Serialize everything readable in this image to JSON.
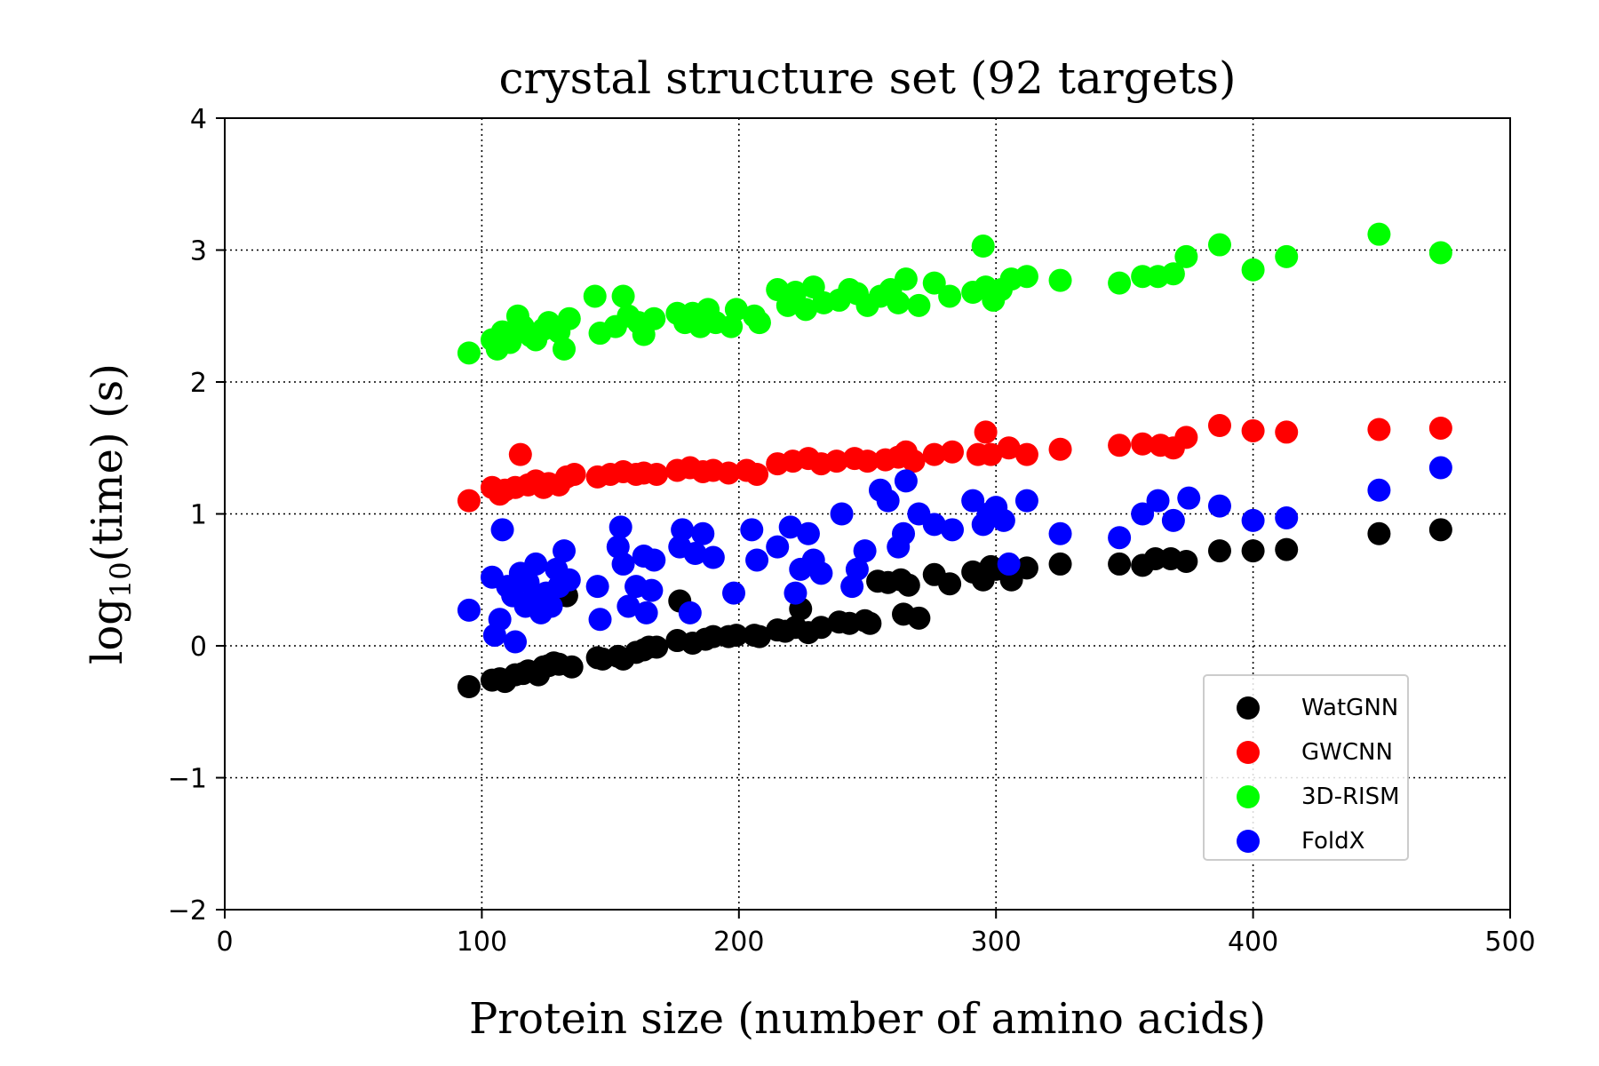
{
  "chart_data": {
    "type": "scatter",
    "title": "crystal structure set (92 targets)",
    "xlabel": "Protein size (number of amino acids)",
    "ylabel": {
      "prefix": "log",
      "subscript": "10",
      "suffix": "(time) (s)"
    },
    "xlim": [
      0,
      500
    ],
    "ylim": [
      -2,
      4
    ],
    "xticks": [
      0,
      100,
      200,
      300,
      400,
      500
    ],
    "yticks": [
      -2,
      -1,
      0,
      1,
      2,
      3,
      4
    ],
    "ytick_labels": [
      "−2",
      "−1",
      "0",
      "1",
      "2",
      "3",
      "4"
    ],
    "grid": "dotted",
    "legend_position": "lower-right",
    "series": [
      {
        "name": "WatGNN",
        "color": "#000000",
        "points": [
          [
            95,
            -0.31
          ],
          [
            104,
            -0.26
          ],
          [
            107,
            -0.25
          ],
          [
            109,
            -0.27
          ],
          [
            113,
            -0.22
          ],
          [
            116,
            -0.21
          ],
          [
            118,
            -0.19
          ],
          [
            121,
            -0.2
          ],
          [
            122,
            -0.22
          ],
          [
            124,
            -0.16
          ],
          [
            126,
            -0.15
          ],
          [
            128,
            -0.13
          ],
          [
            130,
            -0.14
          ],
          [
            133,
            0.38
          ],
          [
            135,
            -0.16
          ],
          [
            145,
            -0.09
          ],
          [
            147,
            -0.1
          ],
          [
            153,
            -0.08
          ],
          [
            155,
            -0.1
          ],
          [
            160,
            -0.05
          ],
          [
            163,
            -0.03
          ],
          [
            165,
            -0.01
          ],
          [
            168,
            -0.01
          ],
          [
            176,
            0.04
          ],
          [
            177,
            0.34
          ],
          [
            182,
            0.02
          ],
          [
            187,
            0.05
          ],
          [
            190,
            0.07
          ],
          [
            196,
            0.07
          ],
          [
            199,
            0.08
          ],
          [
            206,
            0.08
          ],
          [
            208,
            0.07
          ],
          [
            215,
            0.12
          ],
          [
            218,
            0.11
          ],
          [
            222,
            0.14
          ],
          [
            224,
            0.28
          ],
          [
            227,
            0.1
          ],
          [
            232,
            0.14
          ],
          [
            239,
            0.18
          ],
          [
            243,
            0.17
          ],
          [
            249,
            0.19
          ],
          [
            251,
            0.17
          ],
          [
            254,
            0.49
          ],
          [
            258,
            0.48
          ],
          [
            263,
            0.5
          ],
          [
            264,
            0.24
          ],
          [
            266,
            0.46
          ],
          [
            270,
            0.21
          ],
          [
            276,
            0.54
          ],
          [
            282,
            0.47
          ],
          [
            291,
            0.56
          ],
          [
            295,
            0.5
          ],
          [
            298,
            0.6
          ],
          [
            300,
            0.58
          ],
          [
            306,
            0.5
          ],
          [
            312,
            0.59
          ],
          [
            325,
            0.62
          ],
          [
            348,
            0.62
          ],
          [
            357,
            0.61
          ],
          [
            362,
            0.66
          ],
          [
            368,
            0.66
          ],
          [
            374,
            0.64
          ],
          [
            387,
            0.72
          ],
          [
            400,
            0.72
          ],
          [
            413,
            0.73
          ],
          [
            449,
            0.85
          ],
          [
            473,
            0.88
          ]
        ]
      },
      {
        "name": "GWCNN",
        "color": "#ff0000",
        "points": [
          [
            95,
            1.1
          ],
          [
            104,
            1.2
          ],
          [
            107,
            1.15
          ],
          [
            109,
            1.18
          ],
          [
            113,
            1.2
          ],
          [
            115,
            1.45
          ],
          [
            118,
            1.22
          ],
          [
            121,
            1.25
          ],
          [
            124,
            1.2
          ],
          [
            126,
            1.23
          ],
          [
            130,
            1.22
          ],
          [
            133,
            1.28
          ],
          [
            136,
            1.3
          ],
          [
            145,
            1.28
          ],
          [
            150,
            1.3
          ],
          [
            155,
            1.32
          ],
          [
            160,
            1.3
          ],
          [
            163,
            1.31
          ],
          [
            168,
            1.3
          ],
          [
            176,
            1.33
          ],
          [
            181,
            1.35
          ],
          [
            186,
            1.32
          ],
          [
            190,
            1.33
          ],
          [
            196,
            1.31
          ],
          [
            203,
            1.33
          ],
          [
            207,
            1.3
          ],
          [
            215,
            1.38
          ],
          [
            221,
            1.4
          ],
          [
            227,
            1.42
          ],
          [
            232,
            1.38
          ],
          [
            238,
            1.4
          ],
          [
            245,
            1.42
          ],
          [
            250,
            1.4
          ],
          [
            257,
            1.41
          ],
          [
            262,
            1.43
          ],
          [
            265,
            1.47
          ],
          [
            268,
            1.4
          ],
          [
            276,
            1.45
          ],
          [
            283,
            1.47
          ],
          [
            293,
            1.45
          ],
          [
            296,
            1.62
          ],
          [
            298,
            1.45
          ],
          [
            305,
            1.5
          ],
          [
            312,
            1.45
          ],
          [
            325,
            1.49
          ],
          [
            348,
            1.52
          ],
          [
            357,
            1.53
          ],
          [
            364,
            1.52
          ],
          [
            369,
            1.5
          ],
          [
            374,
            1.58
          ],
          [
            387,
            1.67
          ],
          [
            400,
            1.63
          ],
          [
            413,
            1.62
          ],
          [
            449,
            1.64
          ],
          [
            473,
            1.65
          ]
        ]
      },
      {
        "name": "3D-RISM",
        "color": "#00ff00",
        "points": [
          [
            95,
            2.22
          ],
          [
            104,
            2.32
          ],
          [
            106,
            2.25
          ],
          [
            108,
            2.38
          ],
          [
            111,
            2.3
          ],
          [
            114,
            2.5
          ],
          [
            116,
            2.42
          ],
          [
            119,
            2.35
          ],
          [
            121,
            2.32
          ],
          [
            124,
            2.4
          ],
          [
            126,
            2.45
          ],
          [
            130,
            2.38
          ],
          [
            132,
            2.25
          ],
          [
            134,
            2.48
          ],
          [
            144,
            2.65
          ],
          [
            146,
            2.37
          ],
          [
            152,
            2.42
          ],
          [
            155,
            2.65
          ],
          [
            157,
            2.5
          ],
          [
            161,
            2.45
          ],
          [
            163,
            2.36
          ],
          [
            167,
            2.48
          ],
          [
            176,
            2.52
          ],
          [
            179,
            2.45
          ],
          [
            182,
            2.52
          ],
          [
            185,
            2.42
          ],
          [
            188,
            2.55
          ],
          [
            191,
            2.45
          ],
          [
            197,
            2.42
          ],
          [
            199,
            2.55
          ],
          [
            206,
            2.5
          ],
          [
            208,
            2.45
          ],
          [
            215,
            2.7
          ],
          [
            219,
            2.58
          ],
          [
            222,
            2.68
          ],
          [
            226,
            2.55
          ],
          [
            229,
            2.72
          ],
          [
            233,
            2.6
          ],
          [
            239,
            2.62
          ],
          [
            243,
            2.7
          ],
          [
            246,
            2.67
          ],
          [
            250,
            2.58
          ],
          [
            255,
            2.65
          ],
          [
            259,
            2.7
          ],
          [
            262,
            2.6
          ],
          [
            265,
            2.78
          ],
          [
            270,
            2.58
          ],
          [
            276,
            2.75
          ],
          [
            282,
            2.65
          ],
          [
            291,
            2.68
          ],
          [
            295,
            3.03
          ],
          [
            296,
            2.72
          ],
          [
            299,
            2.62
          ],
          [
            302,
            2.7
          ],
          [
            306,
            2.78
          ],
          [
            312,
            2.8
          ],
          [
            325,
            2.77
          ],
          [
            348,
            2.75
          ],
          [
            357,
            2.8
          ],
          [
            363,
            2.8
          ],
          [
            369,
            2.82
          ],
          [
            374,
            2.95
          ],
          [
            387,
            3.04
          ],
          [
            400,
            2.85
          ],
          [
            413,
            2.95
          ],
          [
            449,
            3.12
          ],
          [
            473,
            2.98
          ]
        ]
      },
      {
        "name": "FoldX",
        "color": "#0000ff",
        "points": [
          [
            95,
            0.27
          ],
          [
            104,
            0.52
          ],
          [
            105,
            0.08
          ],
          [
            107,
            0.2
          ],
          [
            108,
            0.88
          ],
          [
            110,
            0.45
          ],
          [
            112,
            0.38
          ],
          [
            113,
            0.03
          ],
          [
            115,
            0.55
          ],
          [
            117,
            0.3
          ],
          [
            118,
            0.48
          ],
          [
            120,
            0.35
          ],
          [
            121,
            0.62
          ],
          [
            123,
            0.25
          ],
          [
            125,
            0.4
          ],
          [
            127,
            0.3
          ],
          [
            129,
            0.58
          ],
          [
            130,
            0.45
          ],
          [
            132,
            0.72
          ],
          [
            134,
            0.5
          ],
          [
            145,
            0.45
          ],
          [
            146,
            0.2
          ],
          [
            153,
            0.75
          ],
          [
            154,
            0.9
          ],
          [
            155,
            0.62
          ],
          [
            157,
            0.3
          ],
          [
            160,
            0.45
          ],
          [
            163,
            0.68
          ],
          [
            164,
            0.25
          ],
          [
            166,
            0.42
          ],
          [
            167,
            0.65
          ],
          [
            177,
            0.75
          ],
          [
            178,
            0.88
          ],
          [
            181,
            0.25
          ],
          [
            183,
            0.7
          ],
          [
            186,
            0.85
          ],
          [
            190,
            0.67
          ],
          [
            198,
            0.4
          ],
          [
            205,
            0.88
          ],
          [
            207,
            0.65
          ],
          [
            215,
            0.75
          ],
          [
            220,
            0.9
          ],
          [
            222,
            0.4
          ],
          [
            224,
            0.58
          ],
          [
            227,
            0.85
          ],
          [
            229,
            0.65
          ],
          [
            232,
            0.55
          ],
          [
            240,
            1.0
          ],
          [
            244,
            0.45
          ],
          [
            246,
            0.58
          ],
          [
            249,
            0.72
          ],
          [
            255,
            1.18
          ],
          [
            258,
            1.1
          ],
          [
            262,
            0.75
          ],
          [
            264,
            0.85
          ],
          [
            265,
            1.25
          ],
          [
            270,
            1.0
          ],
          [
            276,
            0.92
          ],
          [
            283,
            0.88
          ],
          [
            291,
            1.1
          ],
          [
            295,
            0.92
          ],
          [
            297,
            1.0
          ],
          [
            300,
            1.05
          ],
          [
            303,
            0.95
          ],
          [
            305,
            0.62
          ],
          [
            312,
            1.1
          ],
          [
            325,
            0.85
          ],
          [
            348,
            0.82
          ],
          [
            357,
            1.0
          ],
          [
            363,
            1.1
          ],
          [
            369,
            0.95
          ],
          [
            375,
            1.12
          ],
          [
            387,
            1.06
          ],
          [
            400,
            0.95
          ],
          [
            413,
            0.97
          ],
          [
            449,
            1.18
          ],
          [
            473,
            1.35
          ]
        ]
      }
    ]
  }
}
